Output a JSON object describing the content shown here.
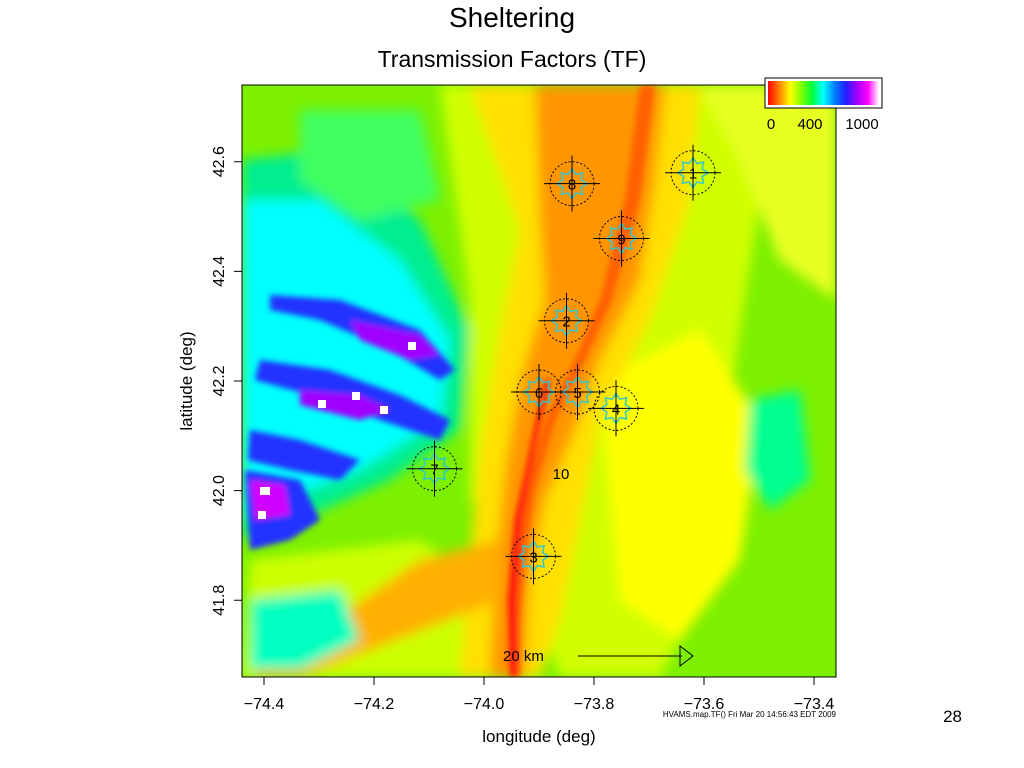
{
  "slide": {
    "title": "Sheltering",
    "subtitle": "Transmission Factors (TF)",
    "page_number": "28"
  },
  "map": {
    "xlabel": "longitude (deg)",
    "ylabel": "latitude (deg)",
    "x_ticks": [
      {
        "value": -74.4,
        "label": "−74.4"
      },
      {
        "value": -74.2,
        "label": "−74.2"
      },
      {
        "value": -74.0,
        "label": "−74.0"
      },
      {
        "value": -73.8,
        "label": "−73.8"
      },
      {
        "value": -73.6,
        "label": "−73.6"
      },
      {
        "value": -73.4,
        "label": "−73.4"
      }
    ],
    "y_ticks": [
      {
        "value": 41.8,
        "label": "41.8"
      },
      {
        "value": 42.0,
        "label": "42.0"
      },
      {
        "value": 42.2,
        "label": "42.2"
      },
      {
        "value": 42.4,
        "label": "42.4"
      },
      {
        "value": 42.6,
        "label": "42.6"
      }
    ],
    "colorbar": {
      "labels": [
        "0",
        "400",
        "1000"
      ],
      "colors": [
        "#ff0000",
        "#ff8000",
        "#ffff00",
        "#80ff00",
        "#00ff40",
        "#00ffff",
        "#0080ff",
        "#2020ff",
        "#a000ff",
        "#ff00ff",
        "#ffffff"
      ]
    },
    "sites": [
      {
        "label": "1",
        "lon": -73.62,
        "lat": 42.58
      },
      {
        "label": "8",
        "lon": -73.84,
        "lat": 42.56
      },
      {
        "label": "9",
        "lon": -73.75,
        "lat": 42.46
      },
      {
        "label": "2",
        "lon": -73.85,
        "lat": 42.31
      },
      {
        "label": "6",
        "lon": -73.9,
        "lat": 42.18
      },
      {
        "label": "5",
        "lon": -73.83,
        "lat": 42.18
      },
      {
        "label": "4",
        "lon": -73.76,
        "lat": 42.15
      },
      {
        "label": "7",
        "lon": -74.09,
        "lat": 42.04
      },
      {
        "label": "3",
        "lon": -73.91,
        "lat": 41.88
      }
    ],
    "contour_label": {
      "text": "10",
      "lon": -73.86,
      "lat": 42.03
    },
    "scale_bar": {
      "label": "20 km"
    },
    "footer_note": "HVAMS.map.TF()  Fri Mar 20 14:56:43 EDT 2009"
  }
}
